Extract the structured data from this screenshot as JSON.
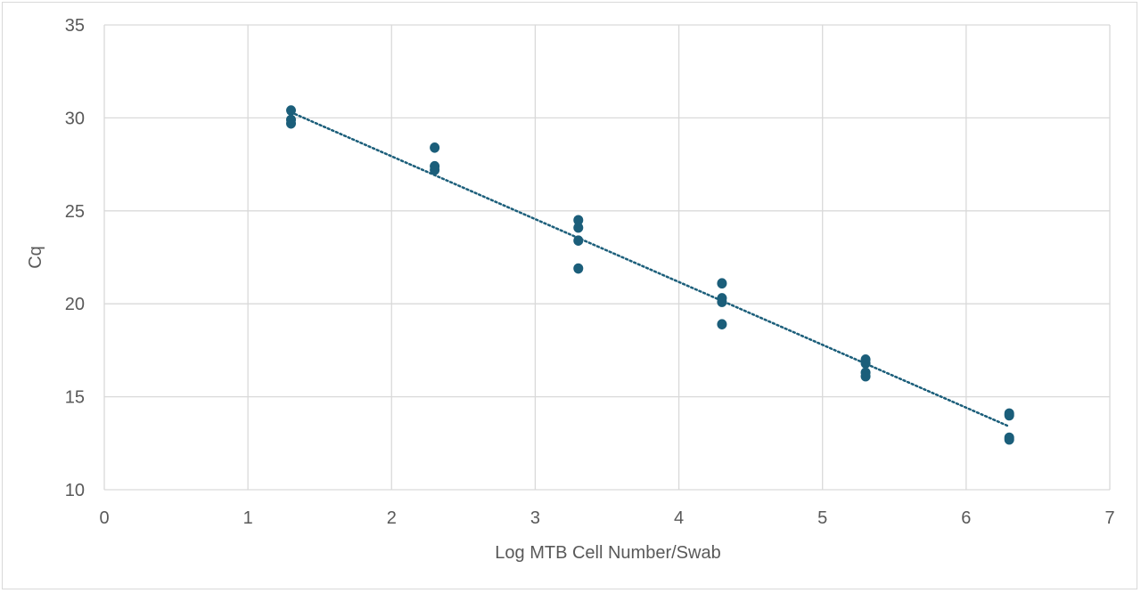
{
  "chart_data": {
    "type": "scatter",
    "title": "",
    "xlabel": "Log MTB Cell Number/Swab",
    "ylabel": "Cq",
    "xlim": [
      0,
      7
    ],
    "ylim": [
      10,
      35
    ],
    "x_ticks": [
      0,
      1,
      2,
      3,
      4,
      5,
      6,
      7
    ],
    "y_ticks": [
      10,
      15,
      20,
      25,
      30,
      35
    ],
    "grid": true,
    "legend": "none",
    "series": [
      {
        "points": [
          {
            "x": 1.3,
            "y": 30.4
          },
          {
            "x": 1.3,
            "y": 29.9
          },
          {
            "x": 1.3,
            "y": 29.7
          },
          {
            "x": 2.3,
            "y": 28.4
          },
          {
            "x": 2.3,
            "y": 27.4
          },
          {
            "x": 2.3,
            "y": 27.2
          },
          {
            "x": 3.3,
            "y": 24.5
          },
          {
            "x": 3.3,
            "y": 24.1
          },
          {
            "x": 3.3,
            "y": 23.4
          },
          {
            "x": 3.3,
            "y": 21.9
          },
          {
            "x": 4.3,
            "y": 21.1
          },
          {
            "x": 4.3,
            "y": 20.3
          },
          {
            "x": 4.3,
            "y": 20.1
          },
          {
            "x": 4.3,
            "y": 18.9
          },
          {
            "x": 5.3,
            "y": 17.0
          },
          {
            "x": 5.3,
            "y": 16.8
          },
          {
            "x": 5.3,
            "y": 16.3
          },
          {
            "x": 5.3,
            "y": 16.1
          },
          {
            "x": 6.3,
            "y": 14.1
          },
          {
            "x": 6.3,
            "y": 14.0
          },
          {
            "x": 6.3,
            "y": 12.8
          },
          {
            "x": 6.3,
            "y": 12.7
          }
        ]
      }
    ],
    "trendline": {
      "style": "dotted",
      "x": [
        1.3,
        6.3
      ],
      "y": [
        30.3,
        13.4
      ]
    },
    "colors": {
      "marker": "#1b5e7a",
      "trendline": "#1b5e7a",
      "grid": "#d9d9d9",
      "text": "#595959"
    }
  }
}
